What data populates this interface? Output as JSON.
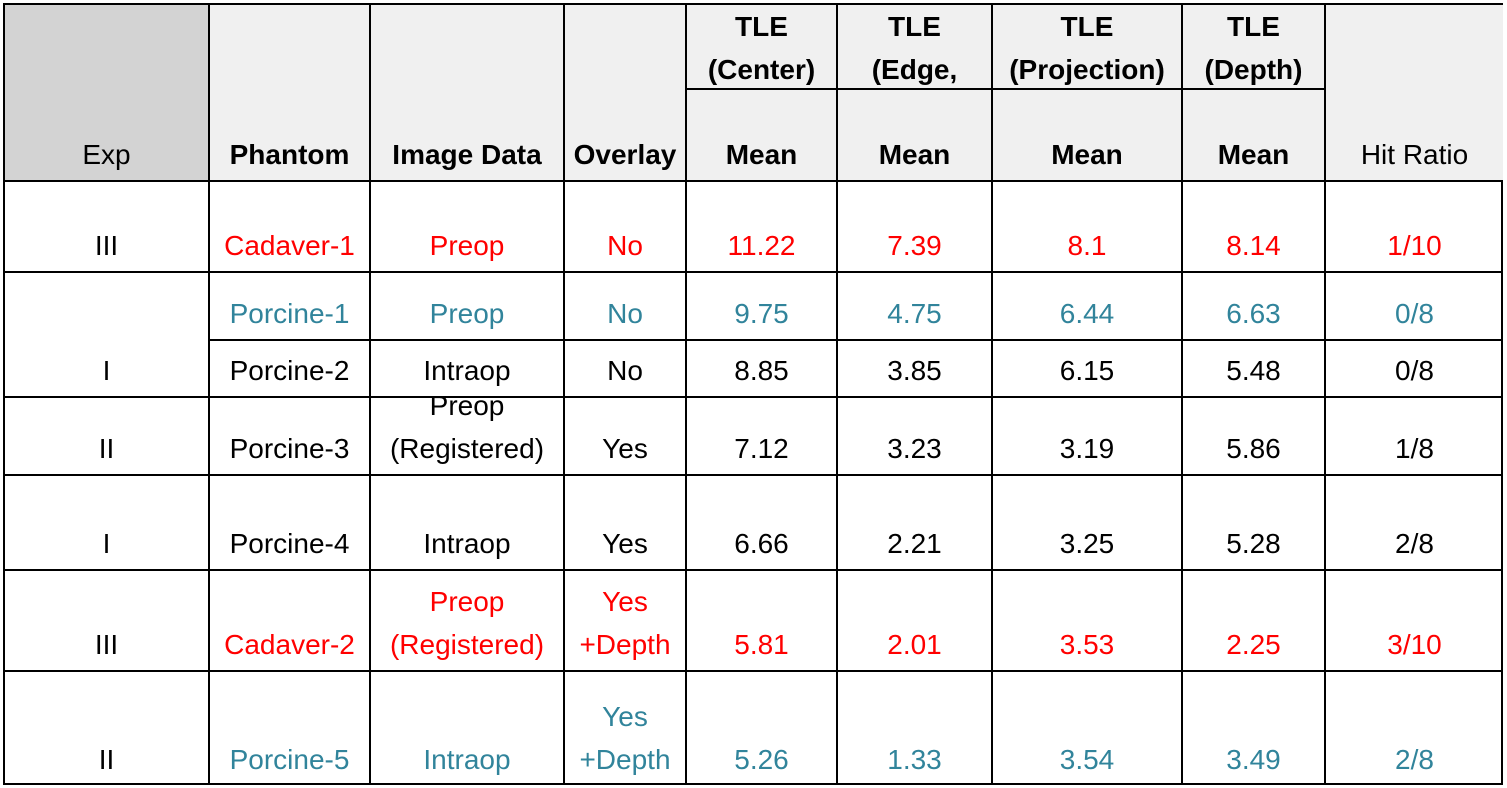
{
  "colors": {
    "red": "#ff0000",
    "teal": "#31849b",
    "black": "#000000",
    "header_bg": "#f0f0f0",
    "exp_header_bg": "#d3d3d3"
  },
  "header": {
    "exp": "Exp",
    "phantom": "Phantom",
    "image_data": "Image Data",
    "overlay": "Overlay",
    "tle_center_1": "TLE",
    "tle_center_2": "(Center)",
    "tle_edge_1": "TLE",
    "tle_edge_2": "(Edge,",
    "tle_projection_1": "TLE",
    "tle_projection_2": "(Projection)",
    "tle_depth_1": "TLE",
    "tle_depth_2": "(Depth)",
    "mean": "Mean",
    "hit_ratio": "Hit Ratio"
  },
  "rows": [
    {
      "exp": "III",
      "phantom": "Cadaver-1",
      "image_data_1": "Preop",
      "image_data_2": "",
      "overlay_1": "No",
      "overlay_2": "",
      "center": "11.22",
      "edge": "7.39",
      "projection": "8.1",
      "depth": "8.14",
      "hit_ratio": "1/10",
      "color": "red"
    },
    {
      "exp": "I",
      "phantom": "Porcine-1",
      "image_data_1": "Preop",
      "image_data_2": "",
      "overlay_1": "No",
      "overlay_2": "",
      "center": "9.75",
      "edge": "4.75",
      "projection": "6.44",
      "depth": "6.63",
      "hit_ratio": "0/8",
      "color": "teal"
    },
    {
      "exp": "",
      "phantom": "Porcine-2",
      "image_data_1": "Intraop",
      "image_data_2": "",
      "overlay_1": "No",
      "overlay_2": "",
      "center": "8.85",
      "edge": "3.85",
      "projection": "6.15",
      "depth": "5.48",
      "hit_ratio": "0/8",
      "color": "black"
    },
    {
      "exp": "II",
      "phantom": "Porcine-3",
      "image_data_1": "Preop",
      "image_data_2": "(Registered)",
      "overlay_1": "Yes",
      "overlay_2": "",
      "center": "7.12",
      "edge": "3.23",
      "projection": "3.19",
      "depth": "5.86",
      "hit_ratio": "1/8",
      "color": "black"
    },
    {
      "exp": "I",
      "phantom": "Porcine-4",
      "image_data_1": "Intraop",
      "image_data_2": "",
      "overlay_1": "Yes",
      "overlay_2": "",
      "center": "6.66",
      "edge": "2.21",
      "projection": "3.25",
      "depth": "5.28",
      "hit_ratio": "2/8",
      "color": "black"
    },
    {
      "exp": "III",
      "phantom": "Cadaver-2",
      "image_data_1": "Preop",
      "image_data_2": "(Registered)",
      "overlay_1": "Yes",
      "overlay_2": "+Depth",
      "center": "5.81",
      "edge": "2.01",
      "projection": "3.53",
      "depth": "2.25",
      "hit_ratio": "3/10",
      "color": "red"
    },
    {
      "exp": "II",
      "phantom": "Porcine-5",
      "image_data_1": "Intraop",
      "image_data_2": "",
      "overlay_1": "Yes",
      "overlay_2": "+Depth",
      "center": "5.26",
      "edge": "1.33",
      "projection": "3.54",
      "depth": "3.49",
      "hit_ratio": "2/8",
      "color": "teal"
    }
  ]
}
